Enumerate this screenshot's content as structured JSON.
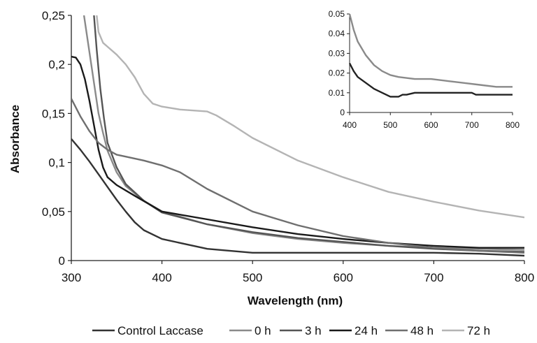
{
  "chart_data": {
    "type": "line",
    "title": "",
    "xlabel": "Wavelength (nm)",
    "ylabel": "Absorbance",
    "xlim": [
      300,
      800
    ],
    "ylim": [
      0,
      0.25
    ],
    "xticks": [
      300,
      400,
      500,
      600,
      700,
      800
    ],
    "xtick_labels": [
      "300",
      "400",
      "500",
      "600",
      "700",
      "800"
    ],
    "yticks": [
      0,
      0.05,
      0.1,
      0.15,
      0.2,
      0.25
    ],
    "ytick_labels": [
      "0",
      "0,05",
      "0,1",
      "0,15",
      "0,2",
      "0,25"
    ],
    "grid": false,
    "legend_position": "bottom",
    "series": [
      {
        "name": "Control Laccase",
        "color": "#333333",
        "x": [
          300,
          310,
          320,
          330,
          340,
          350,
          360,
          370,
          380,
          400,
          450,
          500,
          550,
          600,
          650,
          700,
          750,
          800
        ],
        "y": [
          0.124,
          0.113,
          0.101,
          0.088,
          0.075,
          0.062,
          0.05,
          0.039,
          0.031,
          0.022,
          0.012,
          0.008,
          0.008,
          0.008,
          0.008,
          0.008,
          0.007,
          0.005
        ]
      },
      {
        "name": "0 h",
        "color": "#8a8a8a",
        "x": [
          314,
          318,
          322,
          326,
          330,
          335,
          340,
          350,
          360,
          380,
          400,
          450,
          500,
          550,
          600,
          650,
          700,
          750,
          800
        ],
        "y": [
          0.25,
          0.225,
          0.2,
          0.175,
          0.15,
          0.13,
          0.112,
          0.09,
          0.076,
          0.061,
          0.05,
          0.037,
          0.028,
          0.022,
          0.018,
          0.015,
          0.013,
          0.012,
          0.011
        ]
      },
      {
        "name": "3 h",
        "color": "#555555",
        "x": [
          325,
          328,
          332,
          336,
          340,
          350,
          360,
          380,
          400,
          450,
          500,
          550,
          600,
          650,
          700,
          750,
          800
        ],
        "y": [
          0.25,
          0.215,
          0.175,
          0.145,
          0.12,
          0.095,
          0.078,
          0.061,
          0.049,
          0.037,
          0.029,
          0.023,
          0.019,
          0.015,
          0.012,
          0.01,
          0.009
        ]
      },
      {
        "name": "24 h",
        "color": "#1a1a1a",
        "x": [
          300,
          305,
          310,
          315,
          320,
          325,
          330,
          335,
          340,
          350,
          370,
          400,
          450,
          500,
          550,
          600,
          650,
          700,
          750,
          800
        ],
        "y": [
          0.208,
          0.207,
          0.2,
          0.185,
          0.163,
          0.138,
          0.113,
          0.095,
          0.085,
          0.077,
          0.066,
          0.05,
          0.042,
          0.034,
          0.027,
          0.022,
          0.018,
          0.015,
          0.013,
          0.013
        ]
      },
      {
        "name": "48 h",
        "color": "#6f6f6f",
        "x": [
          300,
          310,
          320,
          330,
          340,
          350,
          360,
          380,
          400,
          420,
          450,
          500,
          550,
          600,
          650,
          700,
          750,
          800
        ],
        "y": [
          0.165,
          0.147,
          0.132,
          0.12,
          0.113,
          0.108,
          0.106,
          0.102,
          0.097,
          0.09,
          0.073,
          0.05,
          0.036,
          0.025,
          0.018,
          0.013,
          0.01,
          0.008
        ]
      },
      {
        "name": "72 h",
        "color": "#b4b4b4",
        "x": [
          328,
          330,
          335,
          340,
          350,
          360,
          370,
          380,
          390,
          400,
          420,
          450,
          460,
          480,
          500,
          550,
          600,
          650,
          700,
          750,
          800
        ],
        "y": [
          0.25,
          0.233,
          0.222,
          0.218,
          0.21,
          0.2,
          0.187,
          0.17,
          0.16,
          0.157,
          0.154,
          0.152,
          0.148,
          0.137,
          0.125,
          0.102,
          0.085,
          0.07,
          0.06,
          0.051,
          0.044
        ]
      }
    ],
    "inset": {
      "xlim": [
        400,
        800
      ],
      "ylim": [
        0,
        0.05
      ],
      "xticks": [
        400,
        500,
        600,
        700,
        800
      ],
      "xtick_labels": [
        "400",
        "500",
        "600",
        "700",
        "800"
      ],
      "yticks": [
        0,
        0.01,
        0.02,
        0.03,
        0.04,
        0.05
      ],
      "ytick_labels": [
        "0",
        "0.01",
        "0.02",
        "0.03",
        "0.04",
        "0.05"
      ],
      "series": [
        {
          "color": "#222222",
          "x": [
            400,
            410,
            420,
            440,
            460,
            480,
            500,
            520,
            530,
            540,
            560,
            600,
            700,
            710,
            800
          ],
          "y": [
            0.025,
            0.021,
            0.018,
            0.015,
            0.012,
            0.01,
            0.008,
            0.008,
            0.009,
            0.009,
            0.01,
            0.01,
            0.01,
            0.009,
            0.009
          ]
        },
        {
          "color": "#8a8a8a",
          "x": [
            400,
            410,
            420,
            440,
            460,
            480,
            500,
            520,
            560,
            600,
            640,
            680,
            720,
            760,
            800
          ],
          "y": [
            0.05,
            0.042,
            0.036,
            0.029,
            0.024,
            0.021,
            0.019,
            0.018,
            0.017,
            0.017,
            0.016,
            0.015,
            0.014,
            0.013,
            0.013
          ]
        }
      ]
    }
  }
}
